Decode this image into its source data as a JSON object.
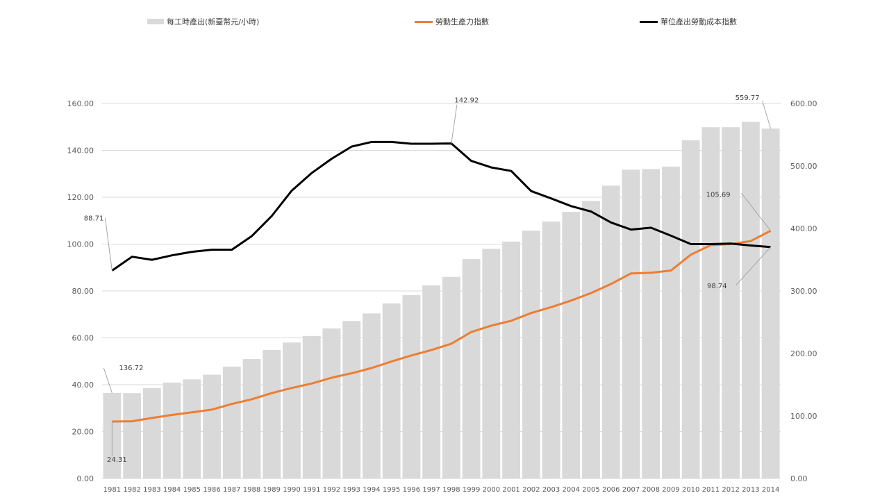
{
  "legend": {
    "bars_label": "每工時產出(新臺幣元/小時)",
    "orange_label": "勞動生產力指數",
    "black_label": "單位產出勞動成本指數"
  },
  "colors": {
    "bars": "#d9d9d9",
    "orange": "#ed7d31",
    "black": "#000000",
    "grid": "#d9d9d9",
    "text": "#595959"
  },
  "chart_data": {
    "type": "bar",
    "title": "",
    "categories": [
      "1981",
      "1982",
      "1983",
      "1984",
      "1985",
      "1986",
      "1987",
      "1988",
      "1989",
      "1990",
      "1991",
      "1992",
      "1993",
      "1994",
      "1995",
      "1996",
      "1997",
      "1998",
      "1999",
      "2000",
      "2001",
      "2002",
      "2003",
      "2004",
      "2005",
      "2006",
      "2007",
      "2008",
      "2009",
      "2010",
      "2011",
      "2012",
      "2013",
      "2014"
    ],
    "left_axis": {
      "ylim": [
        0,
        160
      ],
      "ticks": [
        "0.00",
        "20.00",
        "40.00",
        "60.00",
        "80.00",
        "100.00",
        "120.00",
        "140.00",
        "160.00"
      ]
    },
    "right_axis": {
      "ylim": [
        0,
        600
      ],
      "ticks": [
        "0.00",
        "100.00",
        "200.00",
        "300.00",
        "400.00",
        "500.00",
        "600.00"
      ]
    },
    "grid": true,
    "legend_position": "top",
    "series": [
      {
        "name": "每工時產出(新臺幣元/小時)",
        "type": "bar",
        "axis": "right",
        "values": [
          136.72,
          136.5,
          144.5,
          153.5,
          158.5,
          166.0,
          179.0,
          191.0,
          205.5,
          217.5,
          228.0,
          240.0,
          252.0,
          264.0,
          280.0,
          293.5,
          309.0,
          322.5,
          351.0,
          367.5,
          379.0,
          396.5,
          411.0,
          426.5,
          444.0,
          468.5,
          494.0,
          495.0,
          499.0,
          541.0,
          562.0,
          562.0,
          570.5,
          559.77
        ]
      },
      {
        "name": "勞動生產力指數",
        "type": "line",
        "axis": "left",
        "values": [
          24.31,
          24.4,
          25.8,
          27.1,
          28.2,
          29.4,
          31.8,
          33.8,
          36.4,
          38.6,
          40.5,
          43.0,
          44.9,
          47.1,
          49.9,
          52.5,
          54.8,
          57.5,
          62.5,
          65.2,
          67.3,
          70.6,
          73.1,
          75.9,
          79.1,
          83.0,
          87.5,
          87.8,
          88.7,
          95.5,
          99.6,
          100.0,
          101.3,
          105.69
        ]
      },
      {
        "name": "單位產出勞動成本指數",
        "type": "line",
        "axis": "left",
        "values": [
          88.71,
          94.6,
          93.3,
          95.2,
          96.7,
          97.6,
          97.6,
          103.4,
          112.0,
          122.8,
          130.3,
          136.4,
          141.6,
          143.6,
          143.6,
          142.8,
          142.8,
          142.92,
          135.5,
          132.7,
          131.2,
          122.6,
          119.5,
          116.2,
          113.9,
          109.2,
          106.2,
          107.0,
          103.6,
          100.0,
          100.0,
          100.2,
          99.4,
          98.74
        ]
      }
    ],
    "annotations": [
      {
        "label": "136.72",
        "series": 0,
        "index": 0
      },
      {
        "label": "559.77",
        "series": 0,
        "index": 33
      },
      {
        "label": "24.31",
        "series": 1,
        "index": 0
      },
      {
        "label": "105.69",
        "series": 1,
        "index": 33
      },
      {
        "label": "88.71",
        "series": 2,
        "index": 0
      },
      {
        "label": "142.92",
        "series": 2,
        "index": 17
      },
      {
        "label": "98.74",
        "series": 2,
        "index": 33
      }
    ]
  }
}
